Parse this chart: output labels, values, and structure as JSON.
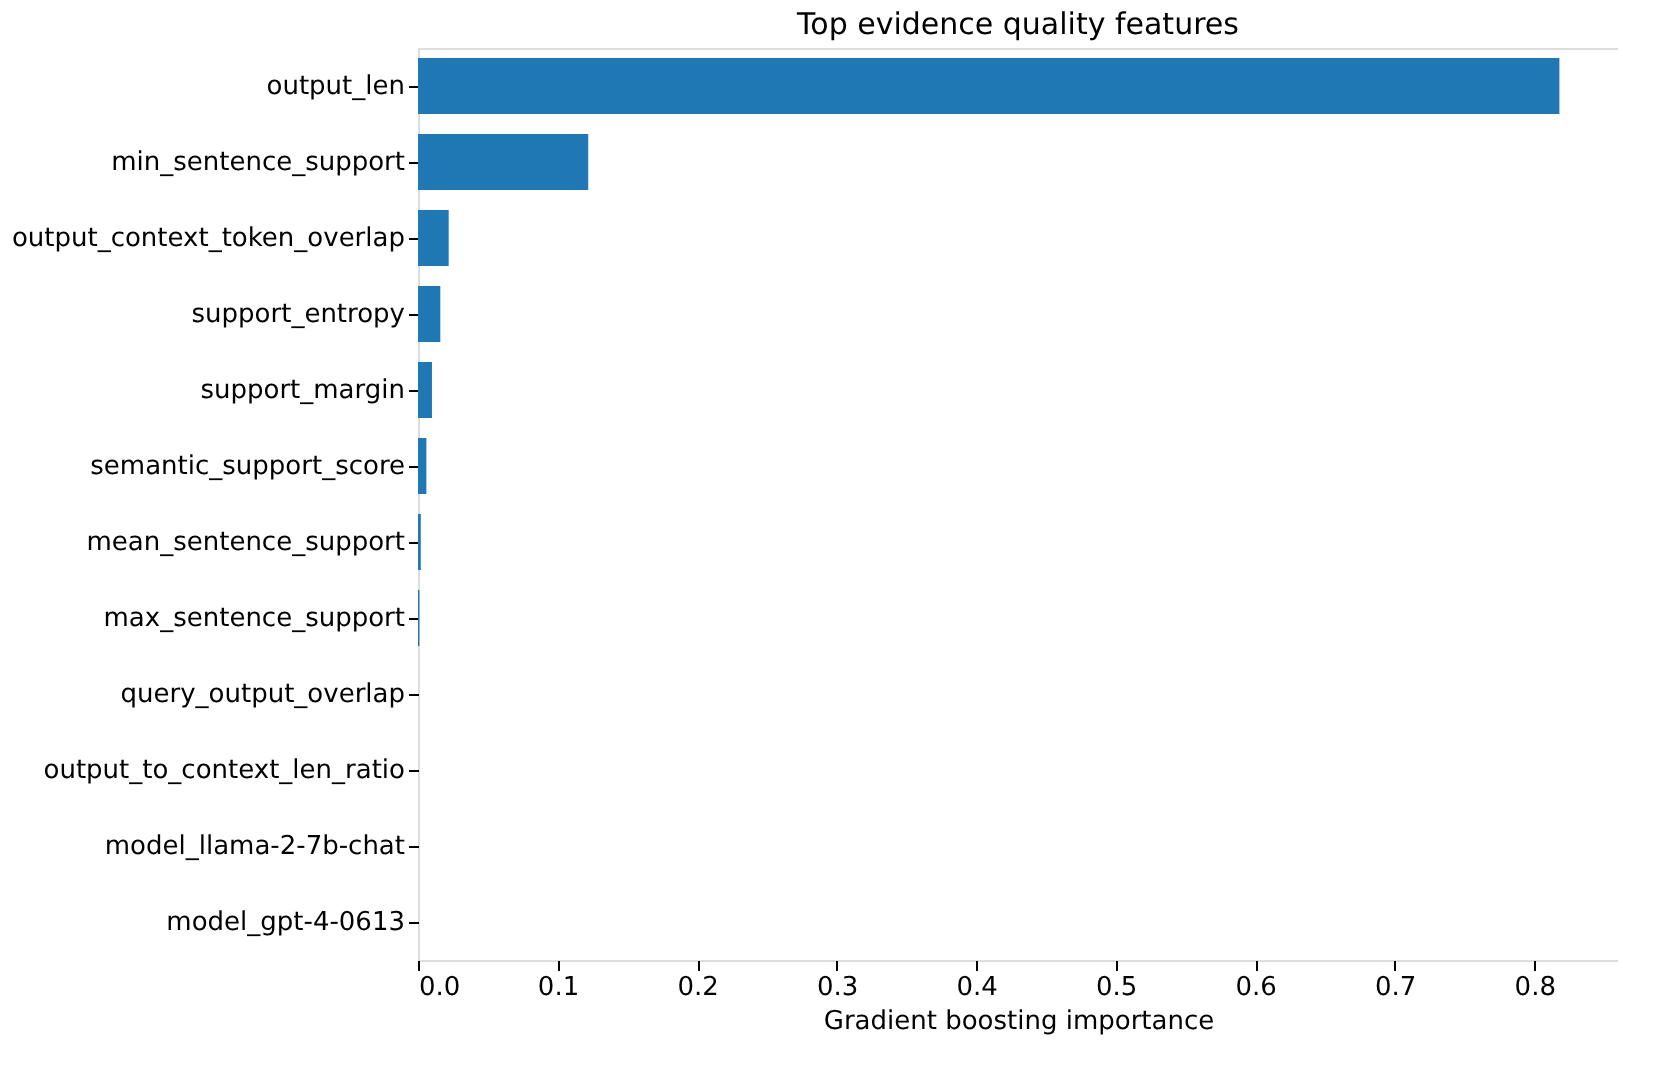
{
  "chart_data": {
    "type": "bar",
    "orientation": "horizontal",
    "title": "Top evidence quality features",
    "xlabel": "Gradient boosting importance",
    "categories": [
      "output_len",
      "min_sentence_support",
      "output_context_token_overlap",
      "support_entropy",
      "support_margin",
      "semantic_support_score",
      "mean_sentence_support",
      "max_sentence_support",
      "query_output_overlap",
      "output_to_context_len_ratio",
      "model_llama-2-7b-chat",
      "model_gpt-4-0613"
    ],
    "values": [
      0.818,
      0.122,
      0.022,
      0.016,
      0.01,
      0.006,
      0.002,
      0.001,
      0,
      0,
      0,
      0
    ],
    "color": "#1f77b4",
    "xlim": [
      0,
      0.86
    ],
    "xticks": [
      {
        "value": 0,
        "label": "0.0"
      },
      {
        "value": 0.1,
        "label": "0.1"
      },
      {
        "value": 0.2,
        "label": "0.2"
      },
      {
        "value": 0.3,
        "label": "0.3"
      },
      {
        "value": 0.4,
        "label": "0.4"
      },
      {
        "value": 0.5,
        "label": "0.5"
      },
      {
        "value": 0.6,
        "label": "0.6"
      },
      {
        "value": 0.7,
        "label": "0.7"
      },
      {
        "value": 0.8,
        "label": "0.8"
      }
    ],
    "grid": false
  }
}
